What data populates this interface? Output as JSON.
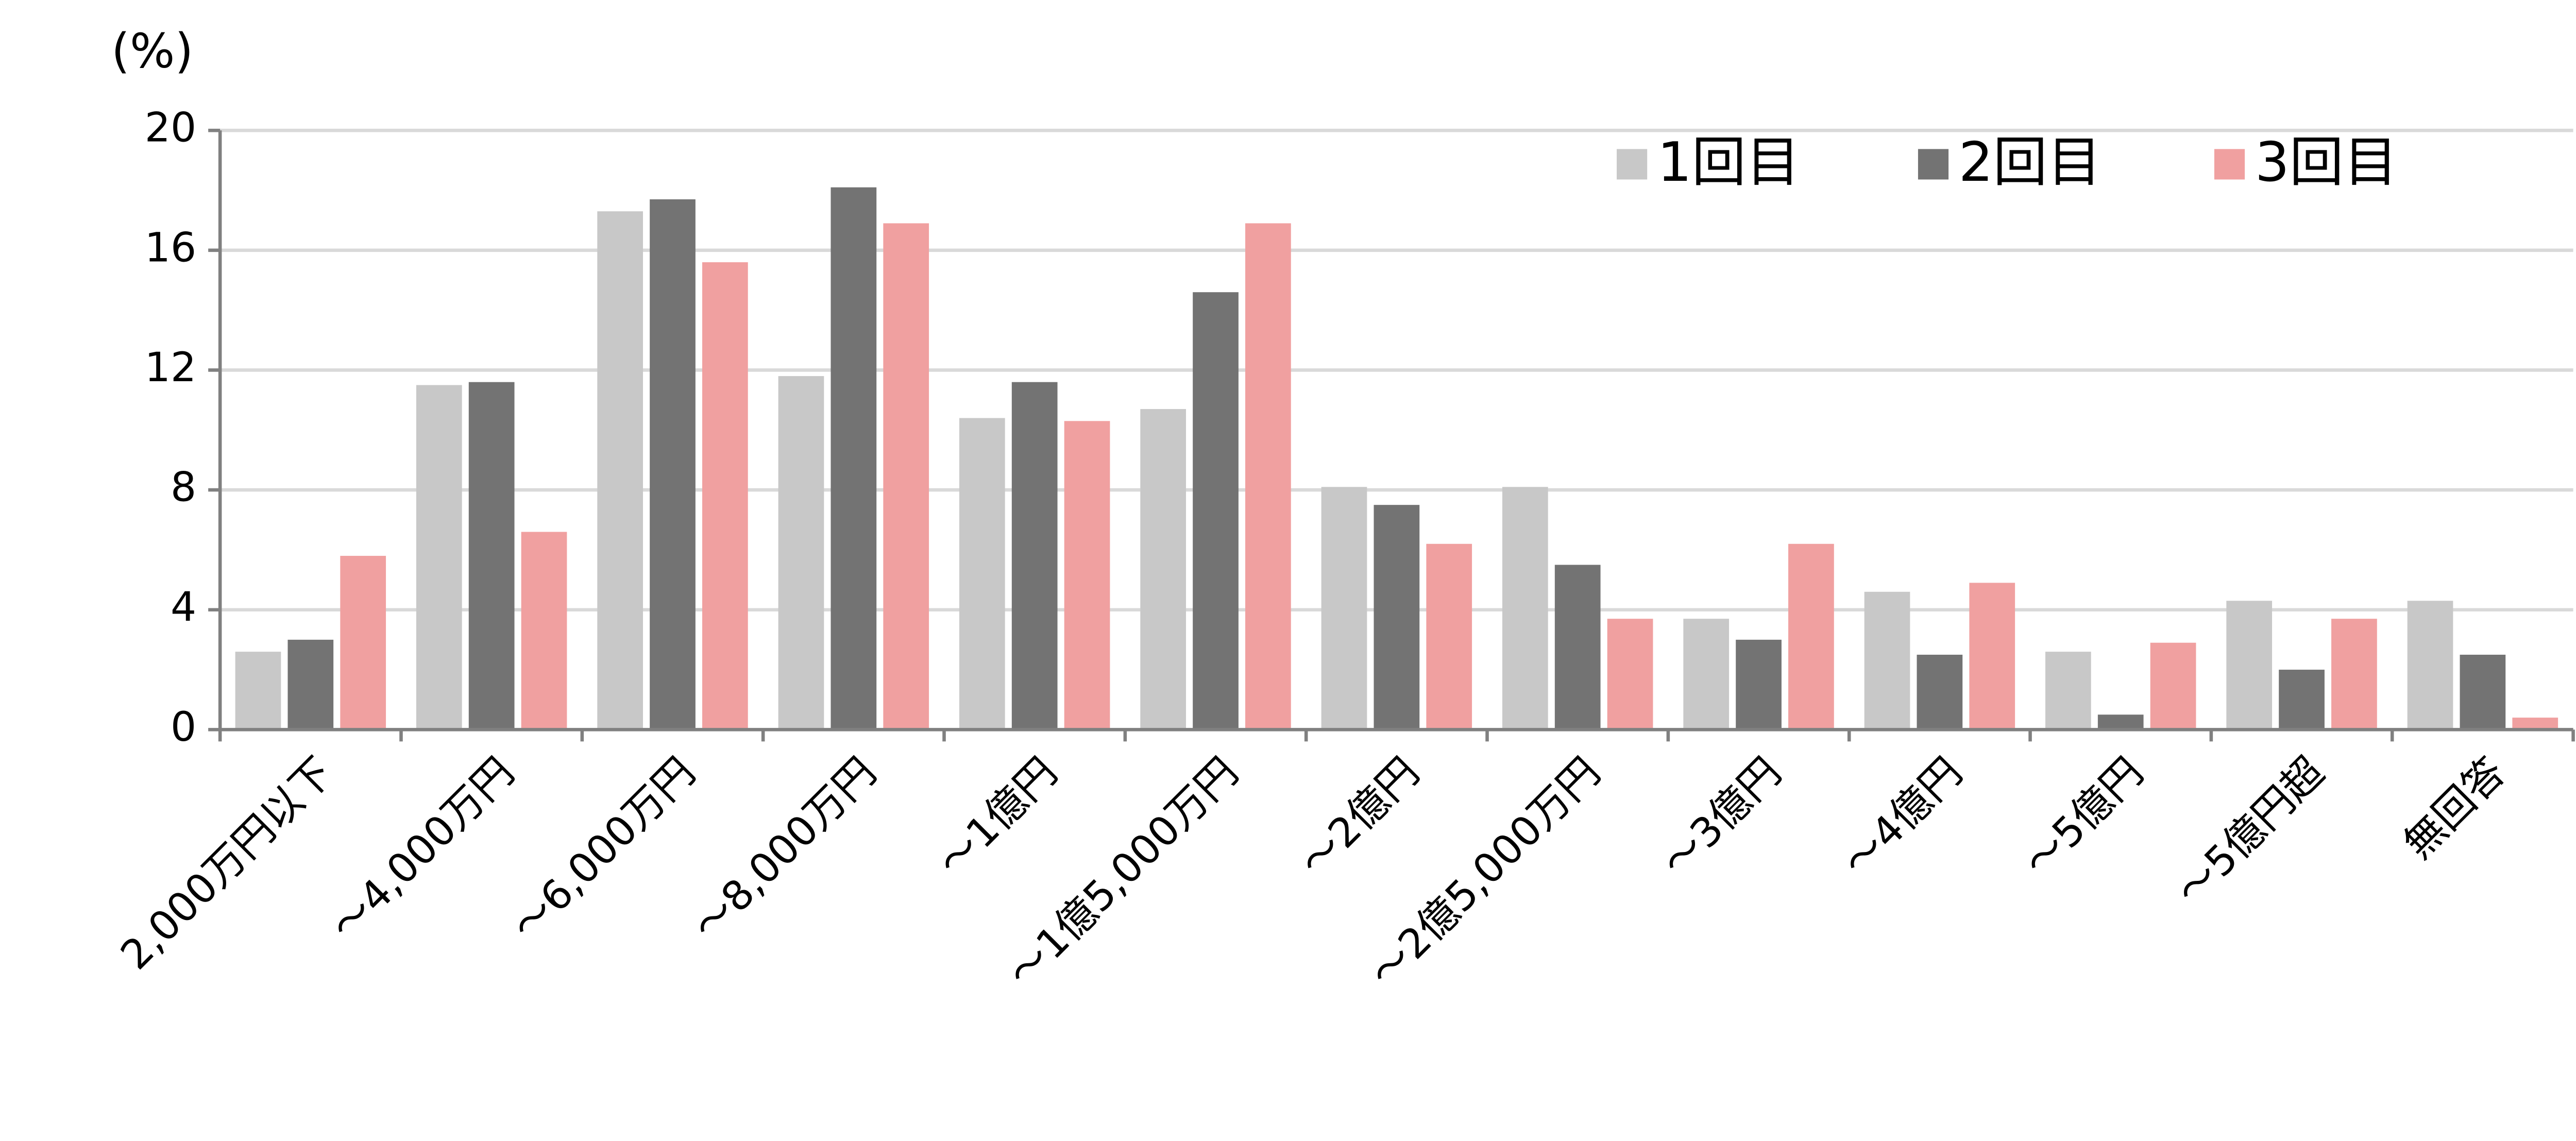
{
  "chart_data": {
    "type": "bar",
    "y_label": "(%)",
    "categories": [
      "2,000万円以下",
      "～4,000万円",
      "～6,000万円",
      "～8,000万円",
      "～1億円",
      "～1億5,000万円",
      "～2億円",
      "～2億5,000万円",
      "～3億円",
      "～4億円",
      "～5億円",
      "～5億円超",
      "無回答"
    ],
    "series": [
      {
        "name": "1回目",
        "color": "#c8c8c8",
        "values": [
          2.6,
          11.5,
          17.3,
          11.8,
          10.4,
          10.7,
          8.1,
          8.1,
          3.7,
          4.6,
          2.6,
          4.3,
          4.3
        ]
      },
      {
        "name": "2回目",
        "color": "#737373",
        "values": [
          3.0,
          11.6,
          17.7,
          18.1,
          11.6,
          14.6,
          7.5,
          5.5,
          3.0,
          2.5,
          0.5,
          2.0,
          2.5
        ]
      },
      {
        "name": "3回目",
        "color": "#f0a0a0",
        "values": [
          5.8,
          6.6,
          15.6,
          16.9,
          10.3,
          16.9,
          6.2,
          3.7,
          6.2,
          4.9,
          2.9,
          3.7,
          0.4
        ]
      }
    ],
    "ylim": [
      0,
      20
    ],
    "yticks": [
      0,
      4,
      8,
      12,
      16,
      20
    ],
    "grid": true,
    "legend": "top-right"
  }
}
